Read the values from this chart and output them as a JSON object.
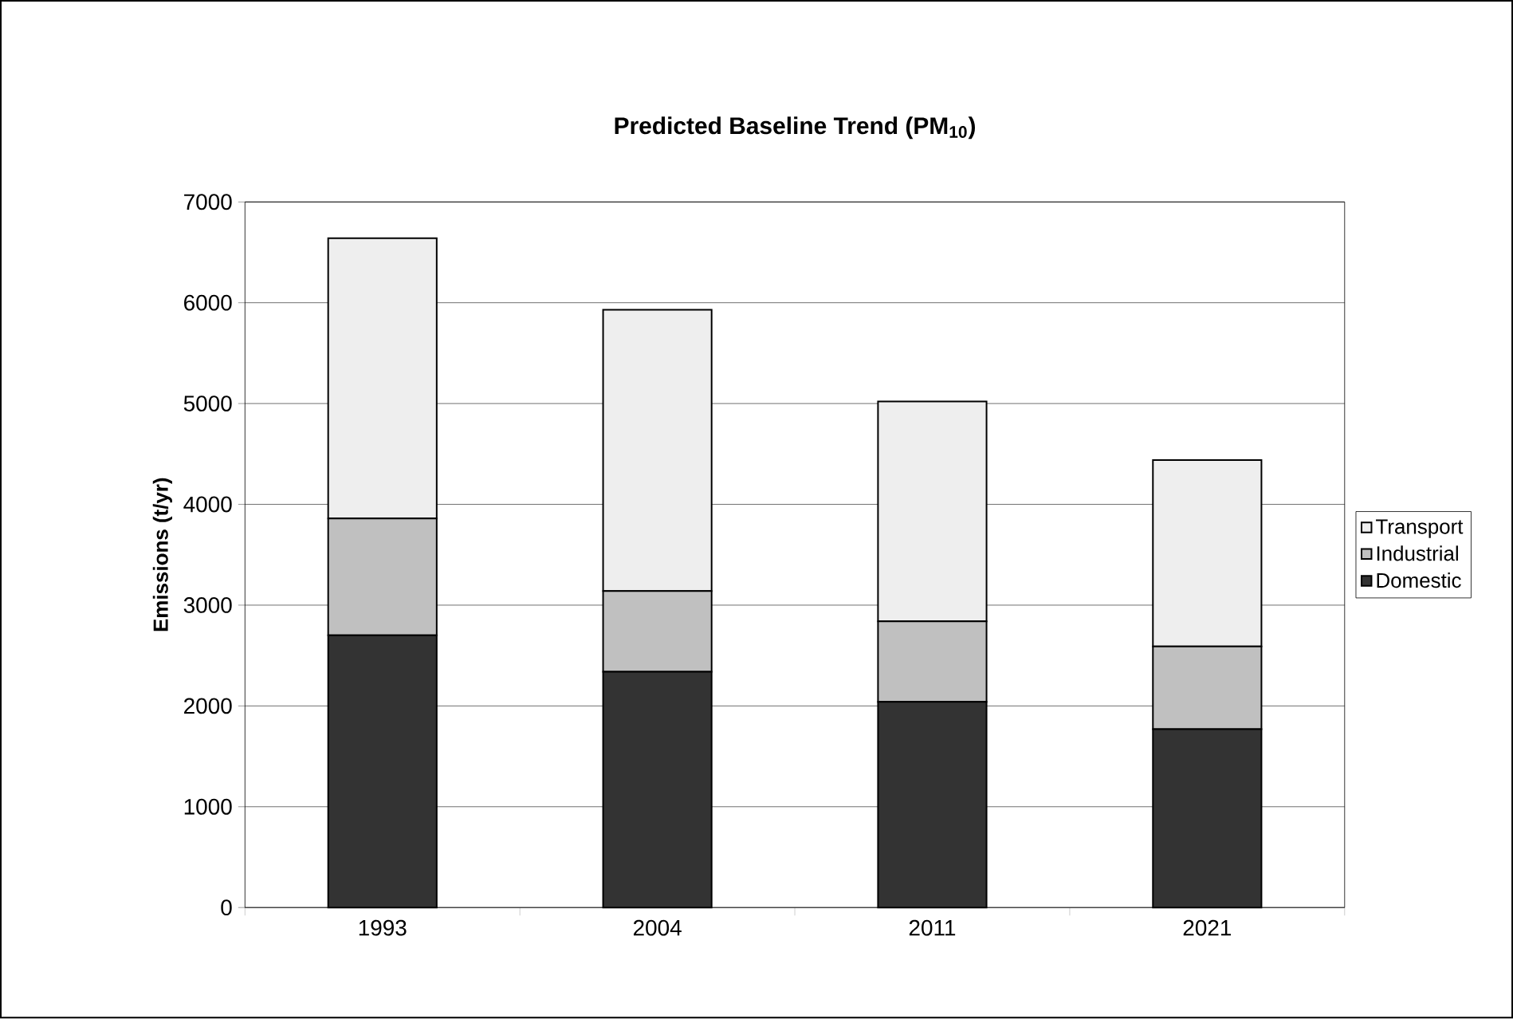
{
  "chart_data": {
    "type": "bar",
    "stacked": true,
    "title": "Predicted Baseline Trend (PM$_{10}$)",
    "ylabel": "Emissions (t/yr)",
    "categories": [
      "1993",
      "2004",
      "2011",
      "2021"
    ],
    "series": [
      {
        "name": "Domestic",
        "color": "#333333",
        "values": [
          2700,
          2340,
          2040,
          1770
        ]
      },
      {
        "name": "Industrial",
        "color": "#c0c0c0",
        "values": [
          1160,
          800,
          800,
          820
        ]
      },
      {
        "name": "Transport",
        "color": "#eeeeee",
        "values": [
          2780,
          2790,
          2180,
          1850
        ]
      }
    ],
    "ylim": [
      0,
      7000
    ],
    "yticks": [
      0,
      1000,
      2000,
      3000,
      4000,
      5000,
      6000,
      7000
    ],
    "grid": "y",
    "legend": "right"
  }
}
